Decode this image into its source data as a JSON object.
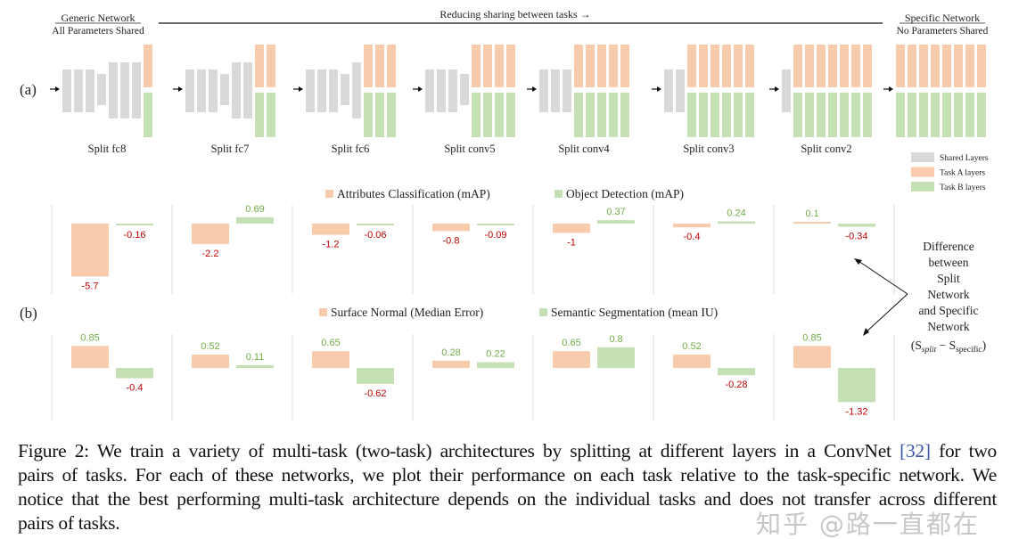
{
  "figure": {
    "panel_a_label": "(a)",
    "panel_b_label": "(b)",
    "generic_title": "Generic Network",
    "generic_subtitle": "All Parameters Shared",
    "specific_title": "Specific Network",
    "specific_subtitle": "No Parameters Shared",
    "arrow_label": "Reducing sharing between tasks →",
    "total_layers": 8,
    "networks": [
      {
        "label": "Split fc8",
        "shared": 7
      },
      {
        "label": "Split fc7",
        "shared": 6
      },
      {
        "label": "Split fc6",
        "shared": 5
      },
      {
        "label": "Split conv5",
        "shared": 4
      },
      {
        "label": "Split conv4",
        "shared": 3
      },
      {
        "label": "Split conv3",
        "shared": 2
      },
      {
        "label": "Split conv2",
        "shared": 1
      },
      {
        "label": "",
        "shared": 0
      }
    ],
    "layer_legend": [
      {
        "label": "Shared Layers",
        "color": "#D9D9D9"
      },
      {
        "label": "Task A layers",
        "color": "#F8CBAD"
      },
      {
        "label": "Task B layers",
        "color": "#C5E0B4"
      }
    ],
    "annotation_lines": [
      "Difference",
      "between",
      "Split",
      "Network",
      "and Specific",
      "Network"
    ],
    "annotation_formula": {
      "s1": "S",
      "sub1": "split",
      "minus": " − ",
      "s2": "S",
      "sub2": "specific",
      "open": "(",
      "close": ")"
    }
  },
  "colors": {
    "shared": "#D9D9D9",
    "task_a": "#F8CBAD",
    "task_b": "#C5E0B4",
    "positive_label": "#70AD47",
    "negative_label": "#C00000"
  },
  "chart_data": [
    {
      "type": "bar",
      "categories": [
        "Split fc8",
        "Split fc7",
        "Split fc6",
        "Split conv5",
        "Split conv4",
        "Split conv3",
        "Split conv2"
      ],
      "series": [
        {
          "name": "Attributes Classification (mAP)",
          "values": [
            -5.7,
            -2.2,
            -1.2,
            -0.8,
            -1,
            -0.4,
            0.1
          ]
        },
        {
          "name": "Object Detection (mAP)",
          "values": [
            -0.16,
            0.69,
            -0.06,
            -0.09,
            0.37,
            0.24,
            -0.34
          ]
        }
      ],
      "legend": "top-center"
    },
    {
      "type": "bar",
      "categories": [
        "Split fc8",
        "Split fc7",
        "Split fc6",
        "Split conv5",
        "Split conv4",
        "Split conv3",
        "Split conv2"
      ],
      "series": [
        {
          "name": "Surface Normal (Median Error)",
          "values": [
            0.85,
            0.52,
            0.65,
            0.28,
            0.65,
            0.52,
            0.85
          ]
        },
        {
          "name": "Semantic Segmentation (mean IU)",
          "values": [
            -0.4,
            0.11,
            -0.62,
            0.22,
            0.8,
            -0.28,
            -1.32
          ]
        }
      ],
      "legend": "top-center"
    }
  ],
  "caption": {
    "lines": [
      [
        "Figure 2: We train a variety of multi-task (two-task) architectures by splitting at different layers in a ConvNet ",
        "[32]",
        " for two"
      ],
      [
        "pairs of tasks. For each of these networks, we plot their performance on each task relative to the task-specific network. We"
      ],
      [
        "notice that the best performing multi-task architecture depends on the individual tasks and does not transfer across different"
      ],
      [
        "pairs of tasks."
      ]
    ]
  },
  "watermark": "知乎 @路一直都在"
}
